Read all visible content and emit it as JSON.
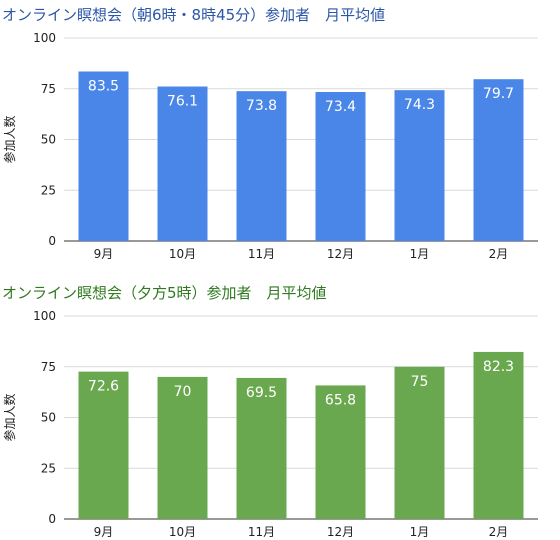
{
  "chart_data": [
    {
      "type": "bar",
      "title": "オンライン瞑想会（朝6時・8時45分）参加者　月平均値",
      "xlabel": "",
      "ylabel": "参加人数",
      "categories": [
        "9月",
        "10月",
        "11月",
        "12月",
        "1月",
        "2月"
      ],
      "values": [
        83.5,
        76.1,
        73.8,
        73.4,
        74.3,
        79.7
      ],
      "value_labels": [
        "83.5",
        "76.1",
        "73.8",
        "73.4",
        "74.3",
        "79.7"
      ],
      "ylim": [
        0,
        100
      ],
      "yticks": [
        0,
        25,
        50,
        75,
        100
      ],
      "grid": true,
      "color": "#4a86e8",
      "title_color": "#2a56a8"
    },
    {
      "type": "bar",
      "title": "オンライン瞑想会（夕方5時）参加者　月平均値",
      "xlabel": "",
      "ylabel": "参加人数",
      "categories": [
        "9月",
        "10月",
        "11月",
        "12月",
        "1月",
        "2月"
      ],
      "values": [
        72.6,
        70,
        69.5,
        65.8,
        75,
        82.3
      ],
      "value_labels": [
        "72.6",
        "70",
        "69.5",
        "65.8",
        "75",
        "82.3"
      ],
      "ylim": [
        0,
        100
      ],
      "yticks": [
        0,
        25,
        50,
        75,
        100
      ],
      "grid": true,
      "color": "#6aa84f",
      "title_color": "#2f7a1f"
    }
  ]
}
